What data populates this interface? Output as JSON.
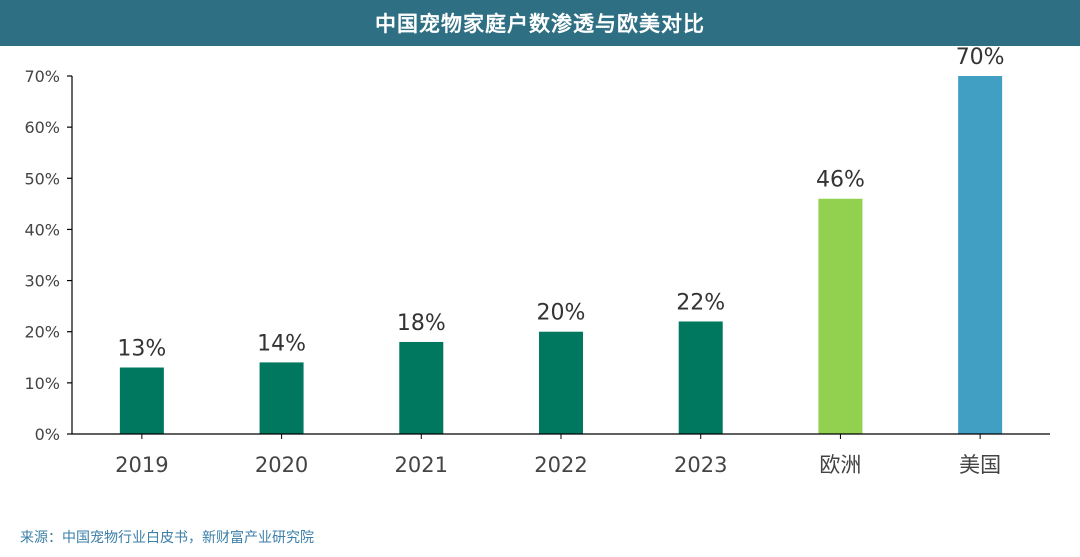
{
  "header": {
    "title": "中国宠物家庭户数渗透与欧美对比"
  },
  "source": "来源：中国宠物行业白皮书，新财富产业研究院",
  "chart_data": {
    "type": "bar",
    "title": "中国宠物家庭户数渗透与欧美对比",
    "categories": [
      "2019",
      "2020",
      "2021",
      "2022",
      "2023",
      "欧洲",
      "美国"
    ],
    "values": [
      13,
      14,
      18,
      20,
      22,
      46,
      70
    ],
    "data_labels": [
      "13%",
      "14%",
      "18%",
      "20%",
      "22%",
      "46%",
      "70%"
    ],
    "colors": [
      "#00775f",
      "#00775f",
      "#00775f",
      "#00775f",
      "#00775f",
      "#92d050",
      "#419fc4"
    ],
    "ylim": [
      0,
      70
    ],
    "yticks": [
      0,
      10,
      20,
      30,
      40,
      50,
      60,
      70
    ],
    "ytick_labels": [
      "0%",
      "10%",
      "20%",
      "30%",
      "40%",
      "50%",
      "60%",
      "70%"
    ],
    "xlabel": "",
    "ylabel": "",
    "grid": false,
    "legend": "none"
  }
}
